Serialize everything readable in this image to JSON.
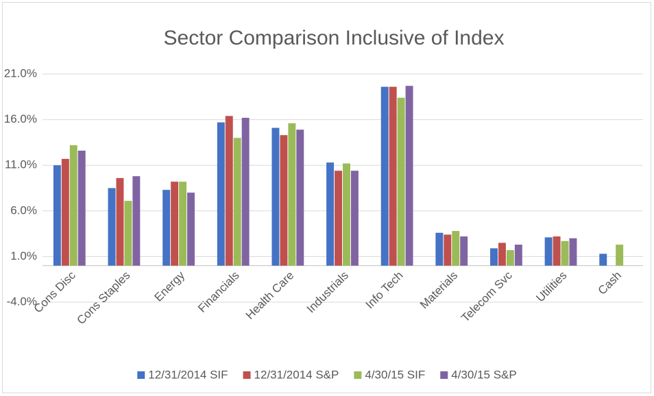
{
  "chart_data": {
    "type": "bar",
    "title": "Sector Comparison Inclusive of Index",
    "categories": [
      "Cons Disc",
      "Cons Staples",
      "Energy",
      "Financials",
      "Health Care",
      "Industrials",
      "Info Tech",
      "Materials",
      "Telecom Svc",
      "Utilities",
      "Cash"
    ],
    "series": [
      {
        "name": "12/31/2014 SIF",
        "color": "#4472c4",
        "values": [
          11.0,
          8.5,
          8.3,
          15.7,
          15.1,
          11.3,
          19.6,
          3.6,
          1.9,
          3.1,
          1.3
        ]
      },
      {
        "name": "12/31/2014 S&P",
        "color": "#c0504d",
        "values": [
          11.7,
          9.6,
          9.2,
          16.4,
          14.3,
          10.4,
          19.6,
          3.4,
          2.5,
          3.2,
          null
        ]
      },
      {
        "name": "4/30/15 SIF",
        "color": "#9bbb59",
        "values": [
          13.2,
          7.1,
          9.2,
          14.0,
          15.6,
          11.2,
          18.4,
          3.8,
          1.7,
          2.7,
          2.3
        ]
      },
      {
        "name": "4/30/15 S&P",
        "color": "#8064a2",
        "values": [
          12.6,
          9.8,
          8.0,
          16.2,
          14.9,
          10.4,
          19.7,
          3.2,
          2.3,
          3.0,
          null
        ]
      }
    ],
    "ylim": [
      -4,
      21
    ],
    "yticks": [
      {
        "value": -4,
        "label": "-4.0%"
      },
      {
        "value": 1,
        "label": "1.0%"
      },
      {
        "value": 6,
        "label": "6.0%"
      },
      {
        "value": 11,
        "label": "11.0%"
      },
      {
        "value": 16,
        "label": "16.0%"
      },
      {
        "value": 21,
        "label": "21.0%"
      }
    ],
    "grid": true,
    "legend": "bottom"
  }
}
